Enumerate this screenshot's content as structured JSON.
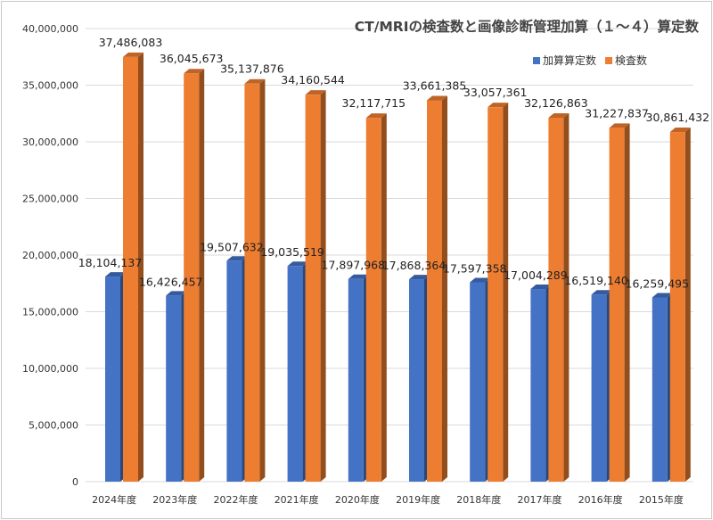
{
  "chart_data": {
    "type": "bar",
    "title": "CT/MRIの検査数と画像診断管理加算（１～４）算定数",
    "categories": [
      "2024年度",
      "2023年度",
      "2022年度",
      "2021年度",
      "2020年度",
      "2019年度",
      "2018年度",
      "2017年度",
      "2016年度",
      "2015年度"
    ],
    "series": [
      {
        "name": "加算算定数",
        "color": "#4472c4",
        "values": [
          18104137,
          16426457,
          19507632,
          19035519,
          17897968,
          17868364,
          17597358,
          17004289,
          16519140,
          16259495
        ],
        "labels": [
          "18,104,137",
          "16,426,457",
          "19,507,632",
          "19,035,519",
          "17,897,968",
          "17,868,364",
          "17,597,358",
          "17,004,289",
          "16,519,140",
          "16,259,495"
        ]
      },
      {
        "name": "検査数",
        "color": "#ed7d31",
        "values": [
          37486083,
          36045673,
          35137876,
          34160544,
          32117715,
          33661385,
          33057361,
          32126863,
          31227837,
          30861432
        ],
        "labels": [
          "37,486,083",
          "36,045,673",
          "35,137,876",
          "34,160,544",
          "32,117,715",
          "33,661,385",
          "33,057,361",
          "32,126,863",
          "31,227,837",
          "30,861,432"
        ]
      }
    ],
    "ylim": [
      0,
      40000000
    ],
    "yticks": [
      {
        "value": 0,
        "label": "0"
      },
      {
        "value": 5000000,
        "label": "5,000,000"
      },
      {
        "value": 10000000,
        "label": "10,000,000"
      },
      {
        "value": 15000000,
        "label": "15,000,000"
      },
      {
        "value": 20000000,
        "label": "20,000,000"
      },
      {
        "value": 25000000,
        "label": "25,000,000"
      },
      {
        "value": 30000000,
        "label": "30,000,000"
      },
      {
        "value": 35000000,
        "label": "35,000,000"
      },
      {
        "value": 40000000,
        "label": "40,000,000"
      }
    ],
    "grid": true,
    "legend_position": "top-right",
    "style": "3d-column"
  }
}
